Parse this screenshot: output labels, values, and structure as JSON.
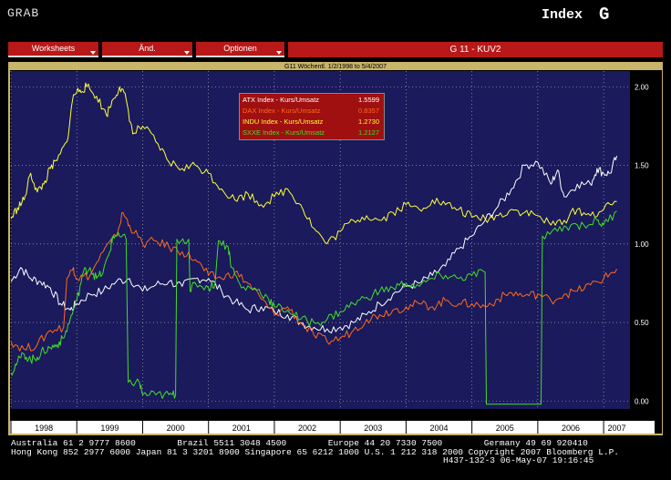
{
  "header": {
    "app_label": "GRAB",
    "security_type": "Index",
    "function_key": "G"
  },
  "menu": {
    "items": [
      {
        "label": "Worksheets"
      },
      {
        "label": "Änd."
      },
      {
        "label": "Optionen"
      }
    ],
    "screen_title": "G 11 - KUV2"
  },
  "chart_data": {
    "type": "line",
    "title": "G11 Wöchentl. 1/2/1998 to 5/4/2007",
    "x_ticks": [
      "1998",
      "1999",
      "2000",
      "2001",
      "2002",
      "2003",
      "2004",
      "2005",
      "2006",
      "2007"
    ],
    "ylim": [
      -0.05,
      2.1
    ],
    "y_ticks": [
      "0.00",
      "0.50",
      "1.00",
      "1.50",
      "2.00"
    ],
    "grid": true,
    "legend_placement": "top-center",
    "series": [
      {
        "name": "ATX Index - Kurs/Umsatz",
        "last": "1.5599",
        "color": "#ffffff",
        "points": [
          [
            1998.0,
            0.76
          ],
          [
            1998.15,
            0.85
          ],
          [
            1998.3,
            0.78
          ],
          [
            1998.45,
            0.76
          ],
          [
            1998.6,
            0.72
          ],
          [
            1998.75,
            0.62
          ],
          [
            1998.9,
            0.58
          ],
          [
            1999.0,
            0.62
          ],
          [
            1999.2,
            0.68
          ],
          [
            1999.4,
            0.7
          ],
          [
            1999.6,
            0.76
          ],
          [
            1999.8,
            0.78
          ],
          [
            2000.0,
            0.7
          ],
          [
            2000.2,
            0.74
          ],
          [
            2000.4,
            0.76
          ],
          [
            2000.6,
            0.73
          ],
          [
            2000.8,
            0.78
          ],
          [
            2001.0,
            0.78
          ],
          [
            2001.2,
            0.7
          ],
          [
            2001.4,
            0.63
          ],
          [
            2001.6,
            0.58
          ],
          [
            2001.8,
            0.6
          ],
          [
            2002.0,
            0.57
          ],
          [
            2002.2,
            0.55
          ],
          [
            2002.4,
            0.5
          ],
          [
            2002.6,
            0.47
          ],
          [
            2002.8,
            0.46
          ],
          [
            2003.0,
            0.47
          ],
          [
            2003.2,
            0.5
          ],
          [
            2003.4,
            0.55
          ],
          [
            2003.6,
            0.62
          ],
          [
            2003.8,
            0.68
          ],
          [
            2004.0,
            0.73
          ],
          [
            2004.2,
            0.75
          ],
          [
            2004.4,
            0.8
          ],
          [
            2004.6,
            0.86
          ],
          [
            2004.8,
            0.97
          ],
          [
            2005.0,
            1.05
          ],
          [
            2005.2,
            1.15
          ],
          [
            2005.4,
            1.24
          ],
          [
            2005.6,
            1.35
          ],
          [
            2005.8,
            1.5
          ],
          [
            2006.0,
            1.52
          ],
          [
            2006.2,
            1.38
          ],
          [
            2006.3,
            1.47
          ],
          [
            2006.4,
            1.3
          ],
          [
            2006.6,
            1.38
          ],
          [
            2006.8,
            1.38
          ],
          [
            2006.9,
            1.48
          ],
          [
            2007.0,
            1.45
          ],
          [
            2007.1,
            1.45
          ],
          [
            2007.2,
            1.56
          ]
        ]
      },
      {
        "name": "DAX Index - Kurs/Umsatz",
        "last": "0.8357",
        "color": "#ff6a1a",
        "points": [
          [
            1998.0,
            0.38
          ],
          [
            1998.2,
            0.33
          ],
          [
            1998.4,
            0.36
          ],
          [
            1998.6,
            0.45
          ],
          [
            1998.8,
            0.47
          ],
          [
            1998.85,
            0.78
          ],
          [
            1998.95,
            0.85
          ],
          [
            1999.0,
            0.78
          ],
          [
            1999.2,
            0.8
          ],
          [
            1999.4,
            0.95
          ],
          [
            1999.6,
            1.05
          ],
          [
            1999.7,
            1.2
          ],
          [
            1999.8,
            1.12
          ],
          [
            2000.0,
            1.0
          ],
          [
            2000.2,
            1.02
          ],
          [
            2000.4,
            0.98
          ],
          [
            2000.6,
            0.95
          ],
          [
            2000.8,
            0.9
          ],
          [
            2001.0,
            0.8
          ],
          [
            2001.2,
            0.78
          ],
          [
            2001.4,
            0.82
          ],
          [
            2001.6,
            0.75
          ],
          [
            2001.8,
            0.65
          ],
          [
            2002.0,
            0.55
          ],
          [
            2002.2,
            0.6
          ],
          [
            2002.4,
            0.5
          ],
          [
            2002.6,
            0.42
          ],
          [
            2002.8,
            0.38
          ],
          [
            2003.0,
            0.4
          ],
          [
            2003.2,
            0.45
          ],
          [
            2003.4,
            0.52
          ],
          [
            2003.6,
            0.55
          ],
          [
            2003.8,
            0.58
          ],
          [
            2004.0,
            0.6
          ],
          [
            2004.2,
            0.62
          ],
          [
            2004.4,
            0.6
          ],
          [
            2004.6,
            0.64
          ],
          [
            2004.8,
            0.62
          ],
          [
            2005.0,
            0.62
          ],
          [
            2005.2,
            0.6
          ],
          [
            2005.4,
            0.65
          ],
          [
            2005.6,
            0.69
          ],
          [
            2005.8,
            0.67
          ],
          [
            2006.0,
            0.68
          ],
          [
            2006.2,
            0.64
          ],
          [
            2006.4,
            0.68
          ],
          [
            2006.6,
            0.7
          ],
          [
            2006.8,
            0.74
          ],
          [
            2007.0,
            0.78
          ],
          [
            2007.2,
            0.84
          ]
        ]
      },
      {
        "name": "INDU Index - Kurs/Umsatz",
        "last": "1.2730",
        "color": "#ffff3a",
        "points": [
          [
            1998.0,
            1.16
          ],
          [
            1998.1,
            1.23
          ],
          [
            1998.2,
            1.28
          ],
          [
            1998.3,
            1.45
          ],
          [
            1998.4,
            1.33
          ],
          [
            1998.5,
            1.38
          ],
          [
            1998.6,
            1.48
          ],
          [
            1998.7,
            1.53
          ],
          [
            1998.85,
            1.65
          ],
          [
            1998.95,
            1.95
          ],
          [
            1999.05,
            1.98
          ],
          [
            1999.15,
            2.0
          ],
          [
            1999.3,
            1.94
          ],
          [
            1999.45,
            1.82
          ],
          [
            1999.55,
            1.92
          ],
          [
            1999.65,
            2.0
          ],
          [
            1999.75,
            1.92
          ],
          [
            1999.85,
            1.7
          ],
          [
            2000.0,
            1.75
          ],
          [
            2000.2,
            1.65
          ],
          [
            2000.4,
            1.52
          ],
          [
            2000.6,
            1.48
          ],
          [
            2000.8,
            1.5
          ],
          [
            2001.0,
            1.45
          ],
          [
            2001.2,
            1.35
          ],
          [
            2001.4,
            1.28
          ],
          [
            2001.6,
            1.32
          ],
          [
            2001.8,
            1.25
          ],
          [
            2002.0,
            1.3
          ],
          [
            2002.2,
            1.35
          ],
          [
            2002.4,
            1.25
          ],
          [
            2002.6,
            1.1
          ],
          [
            2002.8,
            1.0
          ],
          [
            2003.0,
            1.08
          ],
          [
            2003.2,
            1.15
          ],
          [
            2003.4,
            1.18
          ],
          [
            2003.6,
            1.15
          ],
          [
            2003.8,
            1.2
          ],
          [
            2004.0,
            1.25
          ],
          [
            2004.2,
            1.22
          ],
          [
            2004.4,
            1.28
          ],
          [
            2004.6,
            1.25
          ],
          [
            2004.8,
            1.22
          ],
          [
            2005.0,
            1.17
          ],
          [
            2005.2,
            1.16
          ],
          [
            2005.4,
            1.18
          ],
          [
            2005.6,
            1.22
          ],
          [
            2005.8,
            1.2
          ],
          [
            2006.0,
            1.18
          ],
          [
            2006.2,
            1.12
          ],
          [
            2006.4,
            1.15
          ],
          [
            2006.6,
            1.22
          ],
          [
            2006.8,
            1.18
          ],
          [
            2007.0,
            1.22
          ],
          [
            2007.2,
            1.27
          ]
        ]
      },
      {
        "name": "SXXE Index - Kurs/Umsatz",
        "last": "1.2127",
        "color": "#44dd2a",
        "points": [
          [
            1998.0,
            0.18
          ],
          [
            1998.1,
            0.25
          ],
          [
            1998.2,
            0.3
          ],
          [
            1998.3,
            0.26
          ],
          [
            1998.4,
            0.28
          ],
          [
            1998.5,
            0.32
          ],
          [
            1998.6,
            0.34
          ],
          [
            1998.7,
            0.36
          ],
          [
            1998.8,
            0.4
          ],
          [
            1998.9,
            0.52
          ],
          [
            1999.0,
            0.64
          ],
          [
            1999.1,
            0.82
          ],
          [
            1999.2,
            0.85
          ],
          [
            1999.3,
            0.78
          ],
          [
            1999.4,
            0.82
          ],
          [
            1999.5,
            0.95
          ],
          [
            1999.55,
            1.05
          ],
          [
            1999.6,
            1.05
          ],
          [
            1999.75,
            1.03
          ],
          [
            1999.78,
            0.12
          ],
          [
            1999.95,
            0.12
          ],
          [
            2000.0,
            0.04
          ],
          [
            2000.2,
            0.04
          ],
          [
            2000.4,
            0.04
          ],
          [
            2000.5,
            0.04
          ],
          [
            2000.52,
            1.03
          ],
          [
            2000.7,
            1.03
          ],
          [
            2000.72,
            0.7
          ],
          [
            2000.8,
            0.75
          ],
          [
            2001.0,
            0.72
          ],
          [
            2001.1,
            0.75
          ],
          [
            2001.15,
            1.02
          ],
          [
            2001.3,
            0.98
          ],
          [
            2001.35,
            0.85
          ],
          [
            2001.5,
            0.72
          ],
          [
            2001.7,
            0.72
          ],
          [
            2001.9,
            0.66
          ],
          [
            2002.0,
            0.6
          ],
          [
            2002.2,
            0.58
          ],
          [
            2002.4,
            0.52
          ],
          [
            2002.6,
            0.5
          ],
          [
            2002.8,
            0.52
          ],
          [
            2003.0,
            0.57
          ],
          [
            2003.2,
            0.62
          ],
          [
            2003.4,
            0.66
          ],
          [
            2003.6,
            0.7
          ],
          [
            2003.8,
            0.72
          ],
          [
            2004.0,
            0.75
          ],
          [
            2004.2,
            0.73
          ],
          [
            2004.4,
            0.78
          ],
          [
            2004.6,
            0.8
          ],
          [
            2004.8,
            0.78
          ],
          [
            2005.0,
            0.8
          ],
          [
            2005.2,
            0.82
          ],
          [
            2005.22,
            -0.02
          ],
          [
            2005.5,
            -0.02
          ],
          [
            2005.8,
            -0.02
          ],
          [
            2006.0,
            -0.02
          ],
          [
            2006.05,
            -0.02
          ],
          [
            2006.07,
            1.05
          ],
          [
            2006.3,
            1.08
          ],
          [
            2006.5,
            1.12
          ],
          [
            2006.7,
            1.12
          ],
          [
            2006.9,
            1.15
          ],
          [
            2007.0,
            1.12
          ],
          [
            2007.2,
            1.21
          ]
        ]
      }
    ]
  },
  "footer": {
    "line1": "Australia 61 2 9777 8600        Brazil 5511 3048 4500        Europe 44 20 7330 7500        Germany 49 69 920410",
    "line2": "Hong Kong 852 2977 6000 Japan 81 3 3201 8900 Singapore 65 6212 1000 U.S. 1 212 318 2000 Copyright 2007 Bloomberg L.P.",
    "line3": "H437-132-3 06-May-07 19:16:45"
  },
  "colors": {
    "plot_bg": "#1a1a5c",
    "menu_red": "#b81818",
    "frame": "#c8b46a",
    "grid": "#c8c8c8"
  }
}
